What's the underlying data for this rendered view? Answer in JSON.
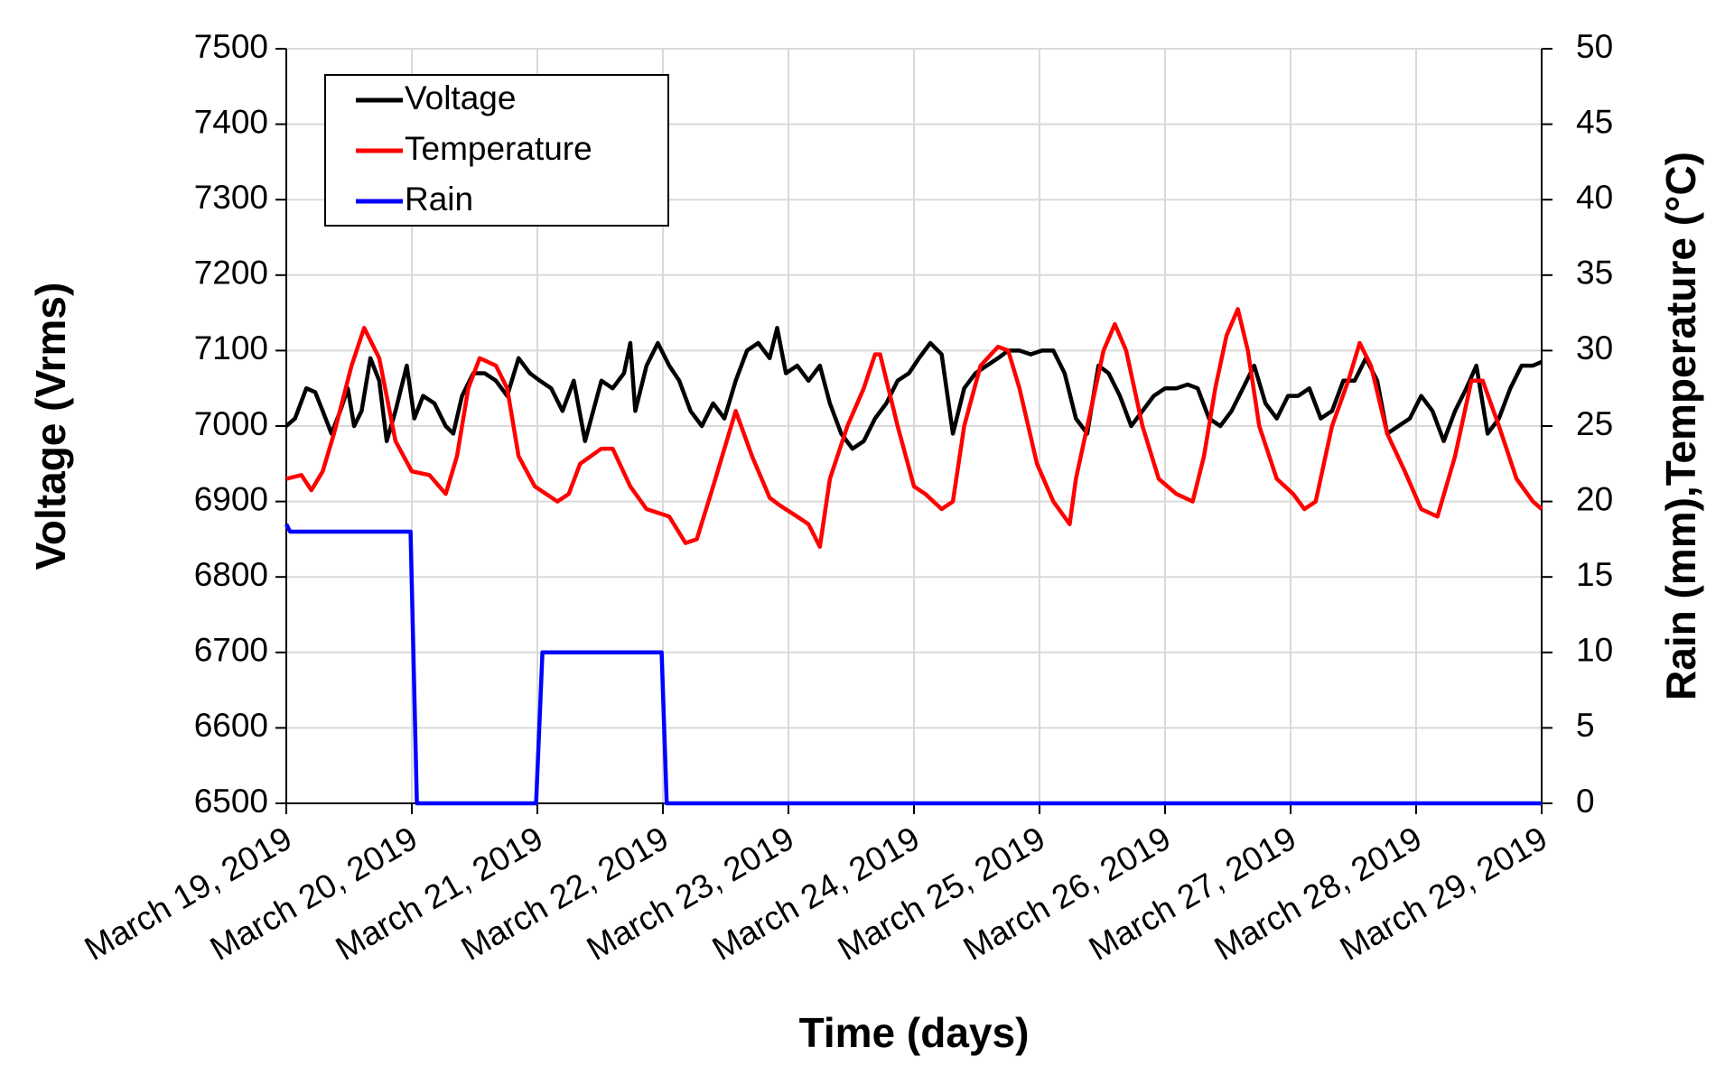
{
  "chart_data": {
    "type": "line",
    "x_label": "Time (days)",
    "y_label": "Voltage (Vrms)",
    "y2_label": "Rain (mm),Temperature (°C)",
    "xlim": [
      19,
      29
    ],
    "xticks": [
      {
        "value": 19,
        "label": "March 19, 2019"
      },
      {
        "value": 20,
        "label": "March 20, 2019"
      },
      {
        "value": 21,
        "label": "March 21, 2019"
      },
      {
        "value": 22,
        "label": "March 22, 2019"
      },
      {
        "value": 23,
        "label": "March 23, 2019"
      },
      {
        "value": 24,
        "label": "March 24, 2019"
      },
      {
        "value": 25,
        "label": "March 25, 2019"
      },
      {
        "value": 26,
        "label": "March 26, 2019"
      },
      {
        "value": 27,
        "label": "March 27, 2019"
      },
      {
        "value": 28,
        "label": "March 28, 2019"
      },
      {
        "value": 29,
        "label": "March 29, 2019"
      }
    ],
    "ylim": [
      6500,
      7500
    ],
    "yticks": [
      6500,
      6600,
      6700,
      6800,
      6900,
      7000,
      7100,
      7200,
      7300,
      7400,
      7500
    ],
    "y2lim": [
      0,
      50
    ],
    "y2ticks": [
      0,
      5,
      10,
      15,
      20,
      25,
      30,
      35,
      40,
      45,
      50
    ],
    "grid": true,
    "legend": "upper left",
    "series": [
      {
        "name": "Voltage",
        "color": "#000000",
        "axis": "y",
        "x": [
          19.0,
          19.07,
          19.16,
          19.23,
          19.29,
          19.36,
          19.43,
          19.49,
          19.54,
          19.6,
          19.67,
          19.74,
          19.8,
          19.87,
          19.96,
          20.02,
          20.09,
          20.18,
          20.27,
          20.33,
          20.4,
          20.49,
          20.58,
          20.67,
          20.76,
          20.85,
          20.94,
          21.02,
          21.11,
          21.2,
          21.29,
          21.38,
          21.51,
          21.6,
          21.69,
          21.74,
          21.78,
          21.87,
          21.96,
          22.05,
          22.13,
          22.22,
          22.31,
          22.4,
          22.49,
          22.58,
          22.67,
          22.76,
          22.85,
          22.91,
          22.98,
          23.07,
          23.16,
          23.25,
          23.33,
          23.42,
          23.51,
          23.6,
          23.69,
          23.78,
          23.87,
          23.96,
          24.04,
          24.13,
          24.22,
          24.31,
          24.4,
          24.49,
          24.58,
          24.67,
          24.75,
          24.84,
          24.93,
          25.02,
          25.11,
          25.2,
          25.29,
          25.38,
          25.47,
          25.55,
          25.64,
          25.73,
          25.82,
          25.91,
          26.0,
          26.09,
          26.18,
          26.26,
          26.35,
          26.44,
          26.53,
          26.62,
          26.71,
          26.8,
          26.89,
          26.98,
          27.06,
          27.15,
          27.24,
          27.33,
          27.42,
          27.51,
          27.6,
          27.69,
          27.77,
          27.86,
          27.95,
          28.04,
          28.13,
          28.22,
          28.31,
          28.4,
          28.48,
          28.57,
          28.66,
          28.75,
          28.84,
          28.93,
          29.0
        ],
        "values": [
          7000,
          7010,
          7050,
          7045,
          7020,
          6990,
          7020,
          7050,
          7000,
          7020,
          7090,
          7060,
          6980,
          7020,
          7080,
          7010,
          7040,
          7030,
          7000,
          6990,
          7040,
          7070,
          7070,
          7060,
          7040,
          7090,
          7070,
          7060,
          7050,
          7020,
          7060,
          6980,
          7060,
          7050,
          7070,
          7110,
          7020,
          7080,
          7110,
          7080,
          7060,
          7020,
          7000,
          7030,
          7010,
          7060,
          7100,
          7110,
          7090,
          7130,
          7070,
          7080,
          7060,
          7080,
          7030,
          6990,
          6970,
          6980,
          7010,
          7030,
          7060,
          7070,
          7090,
          7110,
          7095,
          6990,
          7050,
          7070,
          7080,
          7090,
          7100,
          7100,
          7095,
          7100,
          7100,
          7070,
          7010,
          6990,
          7080,
          7070,
          7040,
          7000,
          7020,
          7040,
          7050,
          7050,
          7055,
          7050,
          7010,
          7000,
          7020,
          7050,
          7080,
          7030,
          7010,
          7040,
          7040,
          7050,
          7010,
          7020,
          7060,
          7060,
          7090,
          7060,
          6990,
          7000,
          7010,
          7040,
          7020,
          6980,
          7020,
          7050,
          7080,
          6990,
          7010,
          7050,
          7080,
          7080,
          7085
        ]
      },
      {
        "name": "Temperature",
        "color": "#ff0000",
        "axis": "y2",
        "x": [
          19.0,
          19.12,
          19.2,
          19.29,
          19.38,
          19.52,
          19.62,
          19.74,
          19.87,
          20.0,
          20.14,
          20.27,
          20.36,
          20.45,
          20.54,
          20.67,
          20.76,
          20.85,
          20.98,
          21.16,
          21.25,
          21.34,
          21.51,
          21.6,
          21.74,
          21.87,
          22.05,
          22.18,
          22.27,
          22.4,
          22.58,
          22.71,
          22.85,
          22.93,
          23.07,
          23.16,
          23.25,
          23.33,
          23.47,
          23.6,
          23.69,
          23.73,
          23.87,
          24.0,
          24.09,
          24.22,
          24.31,
          24.4,
          24.53,
          24.67,
          24.75,
          24.84,
          24.98,
          25.11,
          25.24,
          25.29,
          25.42,
          25.51,
          25.6,
          25.69,
          25.82,
          25.95,
          26.09,
          26.22,
          26.31,
          26.4,
          26.49,
          26.58,
          26.66,
          26.75,
          26.89,
          27.02,
          27.11,
          27.2,
          27.33,
          27.46,
          27.55,
          27.64,
          27.77,
          27.91,
          28.04,
          28.17,
          28.31,
          28.44,
          28.53,
          28.66,
          28.8,
          28.93,
          29.0
        ],
        "values": [
          21.5,
          21.75,
          20.75,
          22,
          24.5,
          29,
          31.5,
          29.5,
          24,
          22,
          21.75,
          20.5,
          23,
          27.5,
          29.5,
          29,
          27.5,
          23,
          21,
          20,
          20.5,
          22.5,
          23.5,
          23.5,
          21,
          19.5,
          19,
          17.25,
          17.5,
          21,
          26,
          23,
          20.25,
          19.75,
          19,
          18.5,
          17,
          21.5,
          25,
          27.5,
          29.75,
          29.75,
          25,
          21,
          20.5,
          19.5,
          20,
          25,
          29,
          30.25,
          30,
          27.5,
          22.5,
          20,
          18.5,
          21.5,
          26.5,
          30,
          31.75,
          30,
          25,
          21.5,
          20.5,
          20,
          23,
          27.5,
          31,
          32.75,
          30,
          25,
          21.5,
          20.5,
          19.5,
          20,
          25,
          28,
          30.5,
          29,
          24.5,
          22,
          19.5,
          19,
          23,
          28,
          28,
          25,
          21.5,
          20,
          19.5
        ]
      },
      {
        "name": "Rain",
        "color": "#0000ff",
        "axis": "y2",
        "x": [
          19.0,
          19.03,
          19.99,
          20.04,
          20.99,
          21.04,
          21.99,
          22.03,
          29.0
        ],
        "values": [
          18.5,
          18,
          18,
          0,
          0,
          10,
          10,
          0,
          0
        ]
      }
    ]
  }
}
